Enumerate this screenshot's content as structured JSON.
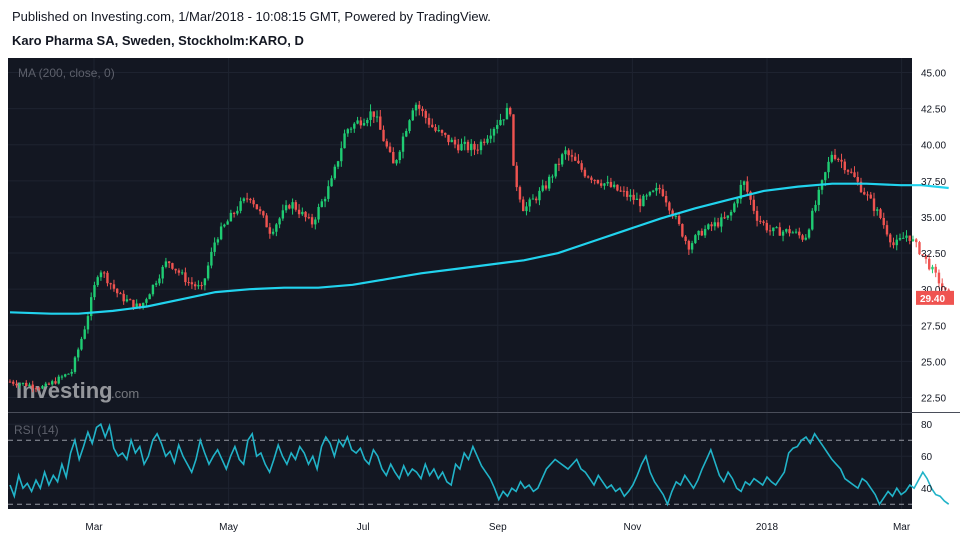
{
  "header": {
    "published": "Published on Investing.com, 1/Mar/2018 - 10:08:15 GMT, Powered by TradingView.",
    "symbol": "Karo Pharma SA, Sweden, Stockholm:KARO, D"
  },
  "watermark": {
    "brand": "Investing",
    "suffix": ".com"
  },
  "colors": {
    "panel_bg": "#131722",
    "up": "#26a69a",
    "up_fill": "#1fcc73",
    "down": "#ef5350",
    "ma": "#21d3ee",
    "rsi": "#21b3c8",
    "badge": "#ef5350"
  },
  "chart_data": [
    {
      "type": "candlestick",
      "title": "Karo Pharma SA, Sweden, Stockholm:KARO, D",
      "legend": "MA (200, close, 0)",
      "ylim": [
        21.5,
        46.0
      ],
      "yticks": [
        "45.00",
        "42.50",
        "40.00",
        "37.50",
        "35.00",
        "32.50",
        "30.00",
        "27.50",
        "25.00",
        "22.50"
      ],
      "ytick_values": [
        45.0,
        42.5,
        40.0,
        37.5,
        35.0,
        32.5,
        30.0,
        27.5,
        25.0,
        22.5
      ],
      "last_price": "29.40",
      "last_price_value": 29.4,
      "x_labels": [
        "Mar",
        "May",
        "Jul",
        "Sep",
        "Nov",
        "2018",
        "Mar"
      ],
      "x_label_months": [
        1,
        3,
        5,
        7,
        9,
        11,
        13
      ],
      "price_path": [
        [
          0.0,
          23.6
        ],
        [
          0.5,
          23.2
        ],
        [
          0.9,
          24.3
        ],
        [
          1.1,
          27.5
        ],
        [
          1.3,
          31.5
        ],
        [
          1.6,
          29.5
        ],
        [
          1.9,
          28.7
        ],
        [
          2.3,
          32.0
        ],
        [
          2.6,
          30.5
        ],
        [
          2.8,
          30.0
        ],
        [
          3.0,
          33.5
        ],
        [
          3.3,
          35.5
        ],
        [
          3.5,
          36.5
        ],
        [
          3.8,
          34.0
        ],
        [
          4.1,
          36.0
        ],
        [
          4.4,
          34.5
        ],
        [
          4.7,
          37.5
        ],
        [
          4.9,
          41.0
        ],
        [
          5.3,
          42.3
        ],
        [
          5.6,
          38.5
        ],
        [
          5.9,
          43.0
        ],
        [
          6.2,
          41.0
        ],
        [
          6.5,
          40.0
        ],
        [
          6.8,
          39.7
        ],
        [
          7.1,
          41.5
        ],
        [
          7.3,
          42.5
        ],
        [
          7.35,
          38.0
        ],
        [
          7.5,
          35.5
        ],
        [
          7.8,
          37.0
        ],
        [
          8.1,
          39.5
        ],
        [
          8.4,
          38.0
        ],
        [
          8.8,
          37.0
        ],
        [
          9.2,
          36.0
        ],
        [
          9.5,
          37.0
        ],
        [
          9.7,
          35.0
        ],
        [
          9.9,
          33.0
        ],
        [
          10.1,
          34.0
        ],
        [
          10.5,
          35.0
        ],
        [
          10.7,
          37.5
        ],
        [
          10.9,
          35.0
        ],
        [
          11.1,
          34.0
        ],
        [
          11.4,
          34.0
        ],
        [
          11.6,
          33.5
        ],
        [
          11.8,
          36.5
        ],
        [
          12.0,
          39.5
        ],
        [
          12.2,
          38.5
        ],
        [
          12.5,
          36.5
        ],
        [
          12.7,
          35.0
        ],
        [
          12.9,
          33.0
        ],
        [
          13.1,
          33.8
        ],
        [
          13.3,
          32.5
        ],
        [
          13.5,
          31.0
        ],
        [
          13.7,
          29.4
        ]
      ],
      "ma_200": [
        [
          0.0,
          28.4
        ],
        [
          0.6,
          28.3
        ],
        [
          1.0,
          28.3
        ],
        [
          1.5,
          28.5
        ],
        [
          2.0,
          28.8
        ],
        [
          2.5,
          29.3
        ],
        [
          3.0,
          29.8
        ],
        [
          3.5,
          30.0
        ],
        [
          4.0,
          30.1
        ],
        [
          4.5,
          30.1
        ],
        [
          5.0,
          30.3
        ],
        [
          5.5,
          30.7
        ],
        [
          6.0,
          31.1
        ],
        [
          6.5,
          31.4
        ],
        [
          7.0,
          31.7
        ],
        [
          7.5,
          32.0
        ],
        [
          8.0,
          32.5
        ],
        [
          8.5,
          33.3
        ],
        [
          9.0,
          34.1
        ],
        [
          9.5,
          34.9
        ],
        [
          10.0,
          35.6
        ],
        [
          10.5,
          36.2
        ],
        [
          11.0,
          36.8
        ],
        [
          11.5,
          37.1
        ],
        [
          12.0,
          37.3
        ],
        [
          12.5,
          37.3
        ],
        [
          13.0,
          37.2
        ],
        [
          13.3,
          37.2
        ],
        [
          13.7,
          37.0
        ]
      ]
    },
    {
      "type": "line",
      "title": "RSI (14)",
      "legend": "RSI (14)",
      "ylim": [
        27,
        87
      ],
      "yticks": [
        "80",
        "60",
        "40"
      ],
      "ytick_values": [
        80,
        60,
        40
      ],
      "bands": [
        70,
        30
      ],
      "series": [
        {
          "values": [
            42,
            35,
            48,
            40,
            43,
            38,
            45,
            40,
            50,
            42,
            48,
            44,
            55,
            47,
            62,
            70,
            58,
            66,
            75,
            68,
            78,
            80,
            72,
            79,
            65,
            60,
            62,
            58,
            70,
            62,
            66,
            55,
            60,
            70,
            74,
            68,
            60,
            63,
            56,
            67,
            60,
            55,
            50,
            58,
            70,
            62,
            55,
            60,
            64,
            58,
            52,
            60,
            66,
            58,
            55,
            70,
            74,
            60,
            62,
            55,
            50,
            58,
            67,
            60,
            55,
            62,
            58,
            66,
            62,
            55,
            60,
            52,
            66,
            72,
            68,
            60,
            70,
            66,
            72,
            64,
            62,
            65,
            58,
            55,
            64,
            60,
            52,
            48,
            55,
            50,
            46,
            54,
            48,
            52,
            50,
            46,
            55,
            48,
            52,
            46,
            50,
            44,
            42,
            55,
            52,
            62,
            58,
            66,
            60,
            54,
            50,
            46,
            40,
            33,
            38,
            35,
            40,
            38,
            44,
            40,
            42,
            38,
            40,
            46,
            52,
            55,
            58,
            56,
            54,
            52,
            55,
            58,
            52,
            50,
            46,
            42,
            48,
            44,
            40,
            42,
            38,
            40,
            35,
            38,
            42,
            48,
            55,
            60,
            50,
            44,
            40,
            36,
            30,
            38,
            44,
            42,
            48,
            44,
            40,
            45,
            52,
            58,
            64,
            56,
            48,
            44,
            50,
            46,
            40,
            38,
            44,
            42,
            46,
            44,
            42,
            47,
            44,
            42,
            46,
            50,
            62,
            65,
            66,
            70,
            72,
            68,
            74,
            70,
            66,
            62,
            58,
            55,
            52,
            46,
            44,
            42,
            40,
            46,
            44,
            40,
            36,
            30,
            34,
            38,
            35,
            40,
            36,
            38,
            42,
            40,
            45,
            50,
            46,
            40,
            36,
            35,
            32,
            30
          ]
        }
      ]
    }
  ]
}
